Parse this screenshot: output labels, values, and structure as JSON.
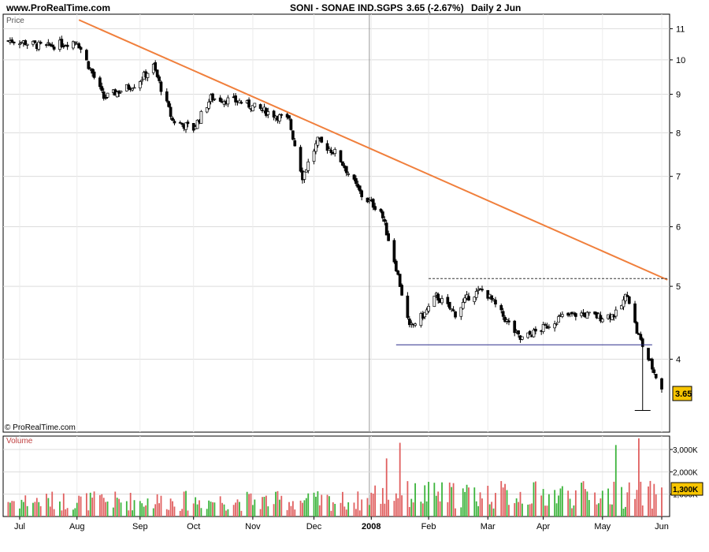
{
  "header": {
    "site": "www.ProRealTime.com",
    "symbol": "SONI - SONAE IND.SGPS",
    "quote": "3.65 (-2.67%)",
    "period": "Daily  2 Jun"
  },
  "price_panel": {
    "label": "Price",
    "watermark": "© ProRealTime.com",
    "last_price_tag": "3.65"
  },
  "volume_panel": {
    "label": "Volume",
    "last_volume_tag": "1,300K"
  },
  "colors": {
    "up": "#3cb43c",
    "down": "#e06060",
    "trendline": "#f07f3c",
    "support": "#2b2f8c",
    "tag_bg": "#f7c500"
  },
  "chart_data": [
    {
      "type": "candlestick",
      "title": "SONI - SONAE IND.SGPS",
      "ylabel": "Price",
      "y_scale": "log",
      "ylim": [
        3.2,
        11.5
      ],
      "y_ticks": [
        "4",
        "5",
        "6",
        "7",
        "8",
        "9",
        "10",
        "11"
      ],
      "x_ticks": [
        "Jul",
        "Aug",
        "Sep",
        "Oct",
        "Nov",
        "Dec",
        "2008",
        "Feb",
        "Mar",
        "Apr",
        "May",
        "Jun"
      ],
      "x_range": [
        "2007-06-25",
        "2008-06-02"
      ],
      "series": [
        {
          "x": "2007-07-01",
          "close": 10.6
        },
        {
          "x": "2007-07-15",
          "close": 10.4
        },
        {
          "x": "2007-08-01",
          "close": 10.6
        },
        {
          "x": "2007-08-15",
          "close": 8.9
        },
        {
          "x": "2007-09-01",
          "close": 9.3
        },
        {
          "x": "2007-09-10",
          "close": 9.8
        },
        {
          "x": "2007-09-20",
          "close": 8.3
        },
        {
          "x": "2007-10-01",
          "close": 8.1
        },
        {
          "x": "2007-10-10",
          "close": 8.9
        },
        {
          "x": "2007-10-25",
          "close": 8.8
        },
        {
          "x": "2007-11-10",
          "close": 8.5
        },
        {
          "x": "2007-11-20",
          "close": 8.3
        },
        {
          "x": "2007-11-27",
          "close": 7.0
        },
        {
          "x": "2007-12-05",
          "close": 7.8
        },
        {
          "x": "2007-12-15",
          "close": 7.5
        },
        {
          "x": "2007-12-28",
          "close": 6.6
        },
        {
          "x": "2008-01-07",
          "close": 6.3
        },
        {
          "x": "2008-01-15",
          "close": 5.3
        },
        {
          "x": "2008-01-22",
          "close": 4.4
        },
        {
          "x": "2008-01-30",
          "close": 4.6
        },
        {
          "x": "2008-02-05",
          "close": 4.85
        },
        {
          "x": "2008-02-15",
          "close": 4.6
        },
        {
          "x": "2008-02-22",
          "close": 4.85
        },
        {
          "x": "2008-03-01",
          "close": 4.95
        },
        {
          "x": "2008-03-10",
          "close": 4.6
        },
        {
          "x": "2008-03-20",
          "close": 4.25
        },
        {
          "x": "2008-04-01",
          "close": 4.4
        },
        {
          "x": "2008-04-10",
          "close": 4.55
        },
        {
          "x": "2008-04-20",
          "close": 4.6
        },
        {
          "x": "2008-05-01",
          "close": 4.55
        },
        {
          "x": "2008-05-10",
          "close": 4.6
        },
        {
          "x": "2008-05-15",
          "close": 4.9
        },
        {
          "x": "2008-05-20",
          "close": 4.35
        },
        {
          "x": "2008-05-26",
          "close": 4.0
        },
        {
          "x": "2008-06-02",
          "close": 3.65
        }
      ],
      "trendlines": [
        {
          "kind": "resistance",
          "style": "solid",
          "from": {
            "x": "2007-08-02",
            "y": 11.3
          },
          "to": {
            "x": "2008-06-05",
            "y": 5.1
          }
        },
        {
          "kind": "range-top",
          "style": "dashed",
          "from": {
            "x": "2008-02-01",
            "y": 5.12
          },
          "to": {
            "x": "2008-06-05",
            "y": 5.12
          }
        },
        {
          "kind": "support",
          "style": "solid",
          "from": {
            "x": "2008-01-15",
            "y": 4.18
          },
          "to": {
            "x": "2008-05-28",
            "y": 4.18
          }
        },
        {
          "kind": "measured-move",
          "style": "solid",
          "from": {
            "x": "2008-05-23",
            "y": 4.18
          },
          "to": {
            "x": "2008-05-23",
            "y": 3.42
          }
        }
      ],
      "vertical_marker": {
        "x": "2008-01-01"
      }
    },
    {
      "type": "bar",
      "title": "Volume",
      "ylim": [
        0,
        3600000
      ],
      "y_ticks": [
        "1,000K",
        "2,000K",
        "3,000K"
      ],
      "notable_values": [
        {
          "x": "2007-08-25",
          "value": 2000000
        },
        {
          "x": "2008-01-10",
          "value": 2600000
        },
        {
          "x": "2008-01-17",
          "value": 3300000
        },
        {
          "x": "2008-05-09",
          "value": 3200000
        },
        {
          "x": "2008-05-21",
          "value": 3500000
        },
        {
          "x": "2008-06-02",
          "value": 1300000
        }
      ]
    }
  ]
}
